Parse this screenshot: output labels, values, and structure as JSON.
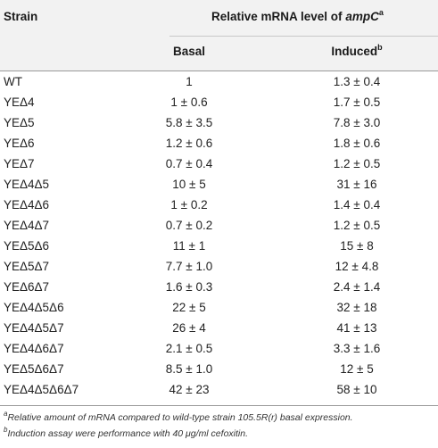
{
  "table": {
    "header": {
      "strain": "Strain",
      "group_prefix": "Relative mRNA level of ",
      "group_gene": "ampC",
      "group_sup": "a",
      "basal": "Basal",
      "induced": "Induced",
      "induced_sup": "b"
    },
    "rows": [
      {
        "strain": "WT",
        "basal": "1",
        "induced": "1.3 ± 0.4"
      },
      {
        "strain": "YEΔ4",
        "basal": "1 ± 0.6",
        "induced": "1.7 ± 0.5"
      },
      {
        "strain": "YEΔ5",
        "basal": "5.8 ± 3.5",
        "induced": "7.8 ± 3.0"
      },
      {
        "strain": "YEΔ6",
        "basal": "1.2 ± 0.6",
        "induced": "1.8 ± 0.6"
      },
      {
        "strain": "YEΔ7",
        "basal": "0.7 ± 0.4",
        "induced": "1.2 ± 0.5"
      },
      {
        "strain": "YEΔ4Δ5",
        "basal": "10 ± 5",
        "induced": "31 ± 16"
      },
      {
        "strain": "YEΔ4Δ6",
        "basal": "1 ± 0.2",
        "induced": "1.4 ± 0.4"
      },
      {
        "strain": "YEΔ4Δ7",
        "basal": "0.7 ± 0.2",
        "induced": "1.2 ± 0.5"
      },
      {
        "strain": "YEΔ5Δ6",
        "basal": "11 ± 1",
        "induced": "15 ± 8"
      },
      {
        "strain": "YEΔ5Δ7",
        "basal": "7.7 ± 1.0",
        "induced": "12 ± 4.8"
      },
      {
        "strain": "YEΔ6Δ7",
        "basal": "1.6 ± 0.3",
        "induced": "2.4 ± 1.4"
      },
      {
        "strain": "YEΔ4Δ5Δ6",
        "basal": "22 ± 5",
        "induced": "32 ± 18"
      },
      {
        "strain": "YEΔ4Δ5Δ7",
        "basal": "26 ± 4",
        "induced": "41 ± 13"
      },
      {
        "strain": "YEΔ4Δ6Δ7",
        "basal": "2.1 ± 0.5",
        "induced": "3.3 ± 1.6"
      },
      {
        "strain": "YEΔ5Δ6Δ7",
        "basal": "8.5 ± 1.0",
        "induced": "12 ± 5"
      },
      {
        "strain": "YEΔ4Δ5Δ6Δ7",
        "basal": "42 ± 23",
        "induced": "58 ± 10"
      }
    ]
  },
  "footnotes": [
    {
      "mark": "a",
      "text": "Relative amount of mRNA compared to wild-type strain 105.5R(r) basal expression."
    },
    {
      "mark": "b",
      "text": "Induction assay were performance with 40 μg/ml cefoxitin."
    }
  ]
}
